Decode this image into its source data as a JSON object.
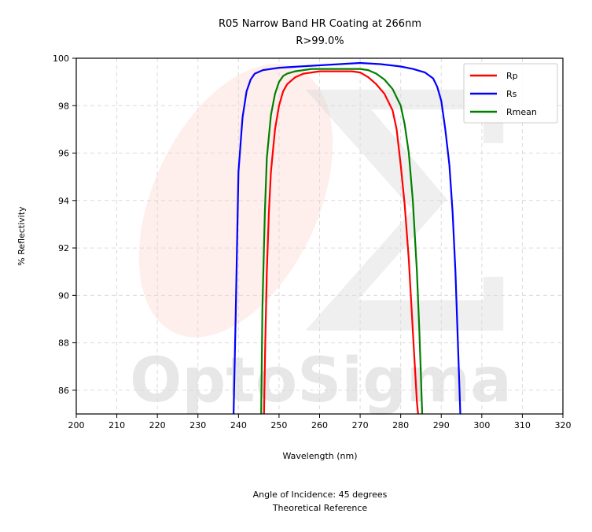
{
  "chart_data": {
    "type": "line",
    "title": "R05 Narrow Band HR Coating at 266nm",
    "subtitle": "R>99.0%",
    "xlabel": "Wavelength (nm)",
    "ylabel": "% Reflectivity",
    "xlim": [
      200,
      320
    ],
    "ylim": [
      85,
      100
    ],
    "xticks": [
      200,
      210,
      220,
      230,
      240,
      250,
      260,
      270,
      280,
      290,
      300,
      310,
      320
    ],
    "yticks": [
      86,
      88,
      90,
      92,
      94,
      96,
      98,
      100
    ],
    "grid": true,
    "legend_position": "top-right",
    "watermark": "OptoSigma",
    "series": [
      {
        "name": "Rp",
        "color": "#ff0000",
        "x": [
          246.3,
          246.6,
          247,
          247.5,
          248,
          249,
          250,
          251,
          252,
          254,
          256,
          258,
          260,
          262,
          264,
          266,
          268,
          270,
          272,
          274,
          276,
          278,
          279,
          280,
          281,
          282,
          283,
          283.5,
          284,
          284.3
        ],
        "y": [
          85,
          88,
          91,
          93.5,
          95.2,
          97.0,
          98.0,
          98.6,
          98.9,
          99.2,
          99.35,
          99.4,
          99.45,
          99.45,
          99.45,
          99.45,
          99.45,
          99.4,
          99.2,
          98.9,
          98.5,
          97.8,
          97.0,
          95.5,
          93.8,
          91.5,
          88.5,
          87,
          85.5,
          85
        ]
      },
      {
        "name": "Rs",
        "color": "#0000ff",
        "x": [
          238.8,
          239.3,
          240,
          241,
          242,
          243,
          244,
          246,
          250,
          255,
          260,
          265,
          270,
          275,
          280,
          283,
          286,
          288,
          289,
          290,
          291,
          292,
          292.8,
          293.5,
          294,
          294.5,
          294.7
        ],
        "y": [
          85,
          89,
          95.2,
          97.5,
          98.6,
          99.1,
          99.35,
          99.5,
          99.6,
          99.65,
          99.7,
          99.75,
          99.8,
          99.75,
          99.65,
          99.55,
          99.4,
          99.15,
          98.8,
          98.2,
          97.0,
          95.5,
          93.5,
          91.0,
          88.5,
          86,
          85
        ]
      },
      {
        "name": "Rmean",
        "color": "#008000",
        "x": [
          245.6,
          245.9,
          246.5,
          247,
          248,
          249,
          250,
          251,
          252,
          254,
          256,
          258,
          260,
          264,
          268,
          270,
          272,
          274,
          276,
          278,
          280,
          281,
          282,
          283,
          284,
          284.6,
          285,
          285.3
        ],
        "y": [
          85,
          89.5,
          93.5,
          95.8,
          97.6,
          98.5,
          99.0,
          99.25,
          99.35,
          99.45,
          99.5,
          99.55,
          99.55,
          99.55,
          99.55,
          99.55,
          99.5,
          99.35,
          99.1,
          98.7,
          98.0,
          97.2,
          96.0,
          94.0,
          91.0,
          88.5,
          86.5,
          85
        ]
      }
    ],
    "footnotes": [
      "Angle of Incidence: 45 degrees",
      "Theoretical Reference"
    ]
  }
}
